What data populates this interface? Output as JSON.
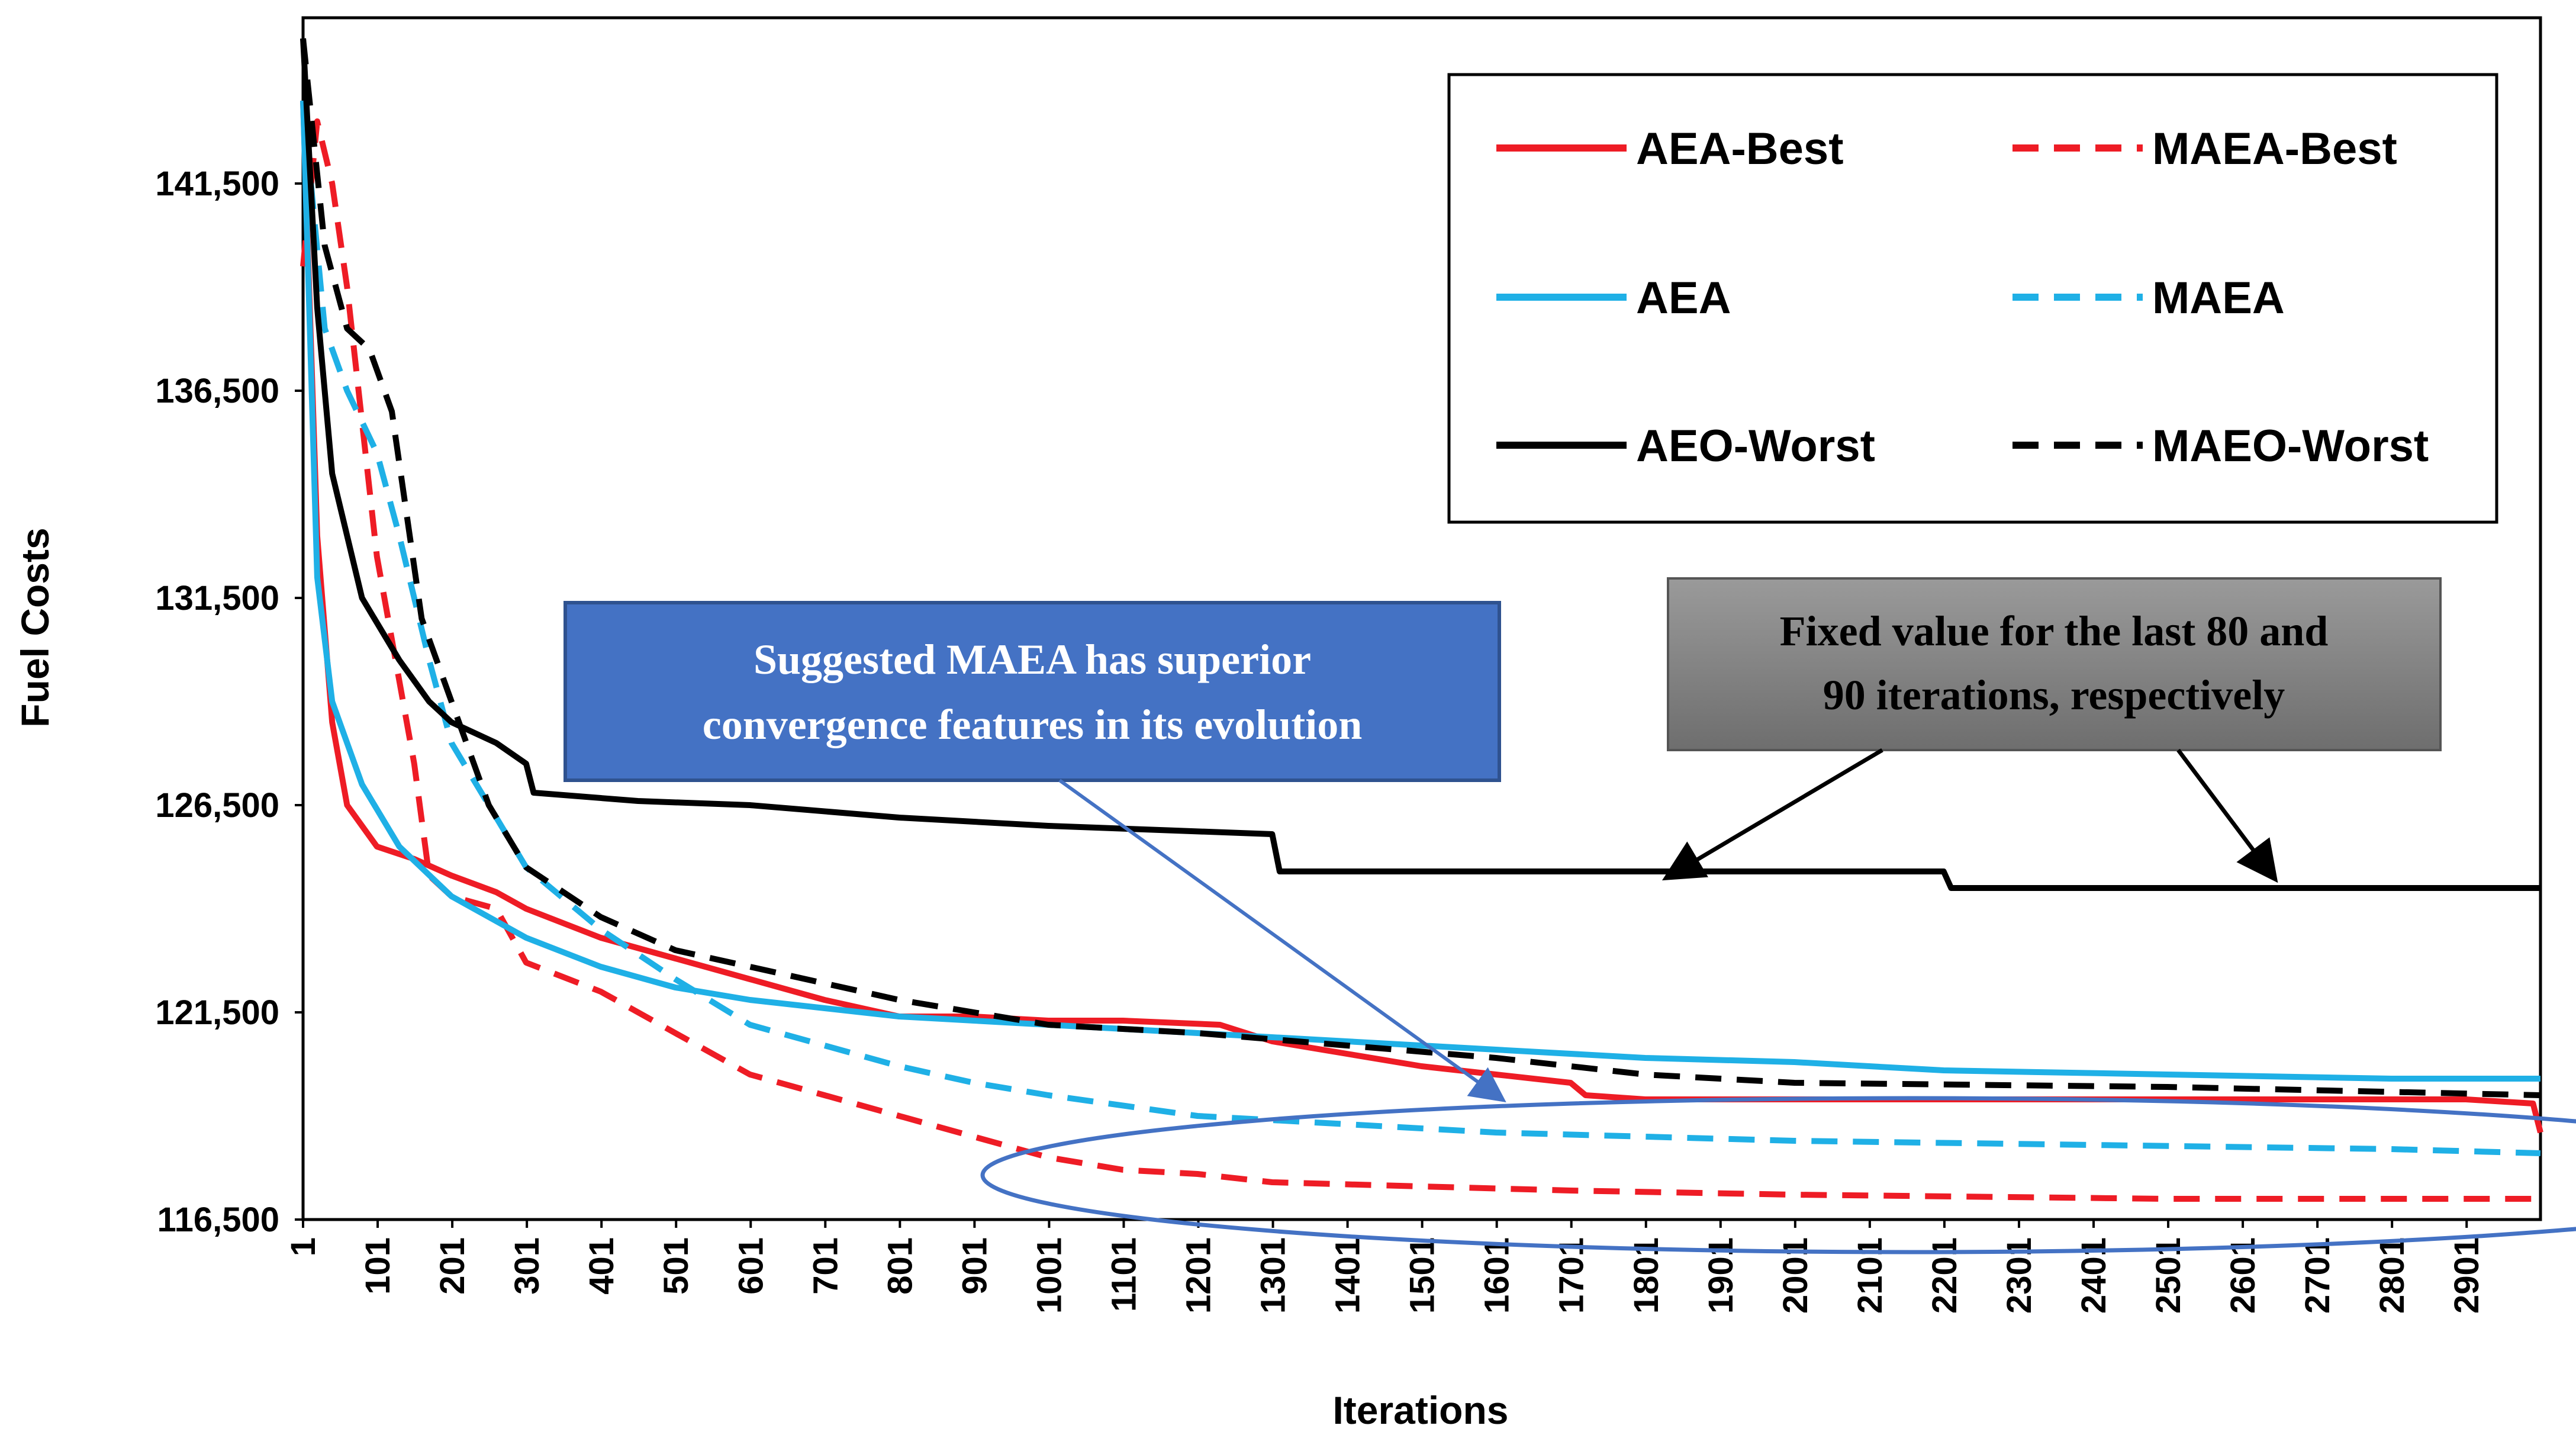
{
  "chart_data": {
    "type": "line",
    "title": "",
    "xlabel": "Iterations",
    "ylabel": "Fuel Costs",
    "xlim": [
      1,
      3000
    ],
    "ylim": [
      116500,
      145500
    ],
    "x_ticks": [
      "1",
      "101",
      "201",
      "301",
      "401",
      "501",
      "601",
      "701",
      "801",
      "901",
      "1001",
      "1101",
      "1201",
      "1301",
      "1401",
      "1501",
      "1601",
      "1701",
      "1801",
      "1901",
      "2001",
      "2101",
      "2201",
      "2301",
      "2401",
      "2501",
      "2601",
      "2701",
      "2801",
      "2901"
    ],
    "y_ticks": [
      "116,500",
      "121,500",
      "126,500",
      "131,500",
      "136,500",
      "141,500"
    ],
    "y_tick_values": [
      116500,
      121500,
      126500,
      131500,
      136500,
      141500
    ],
    "grid": false,
    "legend_position": "top-right",
    "series": [
      {
        "name": "AEA-Best",
        "color": "#ee1c25",
        "dash": "solid",
        "points": [
          [
            1,
            143500
          ],
          [
            20,
            133000
          ],
          [
            40,
            128500
          ],
          [
            60,
            126500
          ],
          [
            100,
            125500
          ],
          [
            150,
            125200
          ],
          [
            200,
            124800
          ],
          [
            260,
            124400
          ],
          [
            300,
            124000
          ],
          [
            400,
            123300
          ],
          [
            500,
            122800
          ],
          [
            600,
            122300
          ],
          [
            700,
            121800
          ],
          [
            800,
            121400
          ],
          [
            900,
            121400
          ],
          [
            1000,
            121300
          ],
          [
            1100,
            121300
          ],
          [
            1230,
            121200
          ],
          [
            1300,
            120800
          ],
          [
            1400,
            120500
          ],
          [
            1500,
            120200
          ],
          [
            1600,
            120000
          ],
          [
            1700,
            119800
          ],
          [
            1720,
            119500
          ],
          [
            1800,
            119400
          ],
          [
            2000,
            119400
          ],
          [
            2500,
            119400
          ],
          [
            2900,
            119400
          ],
          [
            2990,
            119300
          ],
          [
            3000,
            118600
          ]
        ]
      },
      {
        "name": "MAEA-Best",
        "color": "#ee1c25",
        "dash": "dashed",
        "points": [
          [
            1,
            139500
          ],
          [
            20,
            143000
          ],
          [
            40,
            141500
          ],
          [
            60,
            139000
          ],
          [
            100,
            132500
          ],
          [
            130,
            129500
          ],
          [
            150,
            127500
          ],
          [
            170,
            124800
          ],
          [
            200,
            124300
          ],
          [
            260,
            124000
          ],
          [
            300,
            122700
          ],
          [
            400,
            122000
          ],
          [
            500,
            121000
          ],
          [
            600,
            120000
          ],
          [
            700,
            119500
          ],
          [
            800,
            119000
          ],
          [
            900,
            118500
          ],
          [
            1000,
            118000
          ],
          [
            1100,
            117700
          ],
          [
            1200,
            117600
          ],
          [
            1300,
            117400
          ],
          [
            1500,
            117300
          ],
          [
            1700,
            117200
          ],
          [
            2000,
            117100
          ],
          [
            2500,
            117000
          ],
          [
            3000,
            117000
          ]
        ]
      },
      {
        "name": "AEA",
        "color": "#1fb0e6",
        "dash": "solid",
        "points": [
          [
            1,
            143500
          ],
          [
            20,
            132000
          ],
          [
            40,
            129000
          ],
          [
            80,
            127000
          ],
          [
            130,
            125500
          ],
          [
            200,
            124300
          ],
          [
            300,
            123300
          ],
          [
            400,
            122600
          ],
          [
            500,
            122100
          ],
          [
            600,
            121800
          ],
          [
            700,
            121600
          ],
          [
            800,
            121400
          ],
          [
            900,
            121300
          ],
          [
            1000,
            121200
          ],
          [
            1200,
            121000
          ],
          [
            1400,
            120800
          ],
          [
            1600,
            120600
          ],
          [
            1800,
            120400
          ],
          [
            2000,
            120300
          ],
          [
            2200,
            120100
          ],
          [
            2500,
            120000
          ],
          [
            2800,
            119900
          ],
          [
            3000,
            119900
          ]
        ]
      },
      {
        "name": "MAEA",
        "color": "#1fb0e6",
        "dash": "dashed",
        "points": [
          [
            1,
            143500
          ],
          [
            30,
            138000
          ],
          [
            60,
            136500
          ],
          [
            100,
            135000
          ],
          [
            130,
            133000
          ],
          [
            170,
            130000
          ],
          [
            200,
            128000
          ],
          [
            300,
            125000
          ],
          [
            400,
            123500
          ],
          [
            500,
            122300
          ],
          [
            600,
            121200
          ],
          [
            700,
            120700
          ],
          [
            800,
            120200
          ],
          [
            900,
            119800
          ],
          [
            1000,
            119500
          ],
          [
            1200,
            119000
          ],
          [
            1400,
            118800
          ],
          [
            1600,
            118600
          ],
          [
            1800,
            118500
          ],
          [
            2000,
            118400
          ],
          [
            2400,
            118300
          ],
          [
            2800,
            118200
          ],
          [
            3000,
            118100
          ]
        ]
      },
      {
        "name": "AEO-Worst",
        "color": "#000000",
        "dash": "solid",
        "points": [
          [
            1,
            145000
          ],
          [
            20,
            138500
          ],
          [
            40,
            134500
          ],
          [
            60,
            133000
          ],
          [
            80,
            131500
          ],
          [
            130,
            130000
          ],
          [
            170,
            129000
          ],
          [
            200,
            128500
          ],
          [
            260,
            128000
          ],
          [
            300,
            127500
          ],
          [
            310,
            126800
          ],
          [
            450,
            126600
          ],
          [
            600,
            126500
          ],
          [
            800,
            126200
          ],
          [
            1000,
            126000
          ],
          [
            1300,
            125800
          ],
          [
            1310,
            124900
          ],
          [
            1500,
            124900
          ],
          [
            2000,
            124900
          ],
          [
            2200,
            124900
          ],
          [
            2210,
            124500
          ],
          [
            3000,
            124500
          ]
        ]
      },
      {
        "name": "MAEO-Worst",
        "color": "#000000",
        "dash": "dashed",
        "points": [
          [
            1,
            145000
          ],
          [
            30,
            140000
          ],
          [
            60,
            138000
          ],
          [
            90,
            137500
          ],
          [
            120,
            136000
          ],
          [
            160,
            131000
          ],
          [
            200,
            129000
          ],
          [
            250,
            126500
          ],
          [
            300,
            125000
          ],
          [
            400,
            123800
          ],
          [
            500,
            123000
          ],
          [
            600,
            122600
          ],
          [
            700,
            122200
          ],
          [
            800,
            121800
          ],
          [
            900,
            121500
          ],
          [
            1000,
            121200
          ],
          [
            1200,
            121000
          ],
          [
            1400,
            120700
          ],
          [
            1600,
            120400
          ],
          [
            1800,
            120000
          ],
          [
            2000,
            119800
          ],
          [
            2500,
            119700
          ],
          [
            3000,
            119500
          ]
        ]
      }
    ],
    "annotations": [
      {
        "text": "Suggested MAEA has superior convergence features in its evolution",
        "lines": [
          "Suggested MAEA has superior",
          "convergence features in its evolution"
        ],
        "fill": "#4472c4",
        "text_color": "#ffffff"
      },
      {
        "text": "Fixed value for the last 80 and 90 iterations, respectively",
        "lines": [
          "Fixed value for the last 80 and",
          "90 iterations, respectively"
        ],
        "fill": "#7f7f7f",
        "text_color": "#000000"
      }
    ]
  }
}
